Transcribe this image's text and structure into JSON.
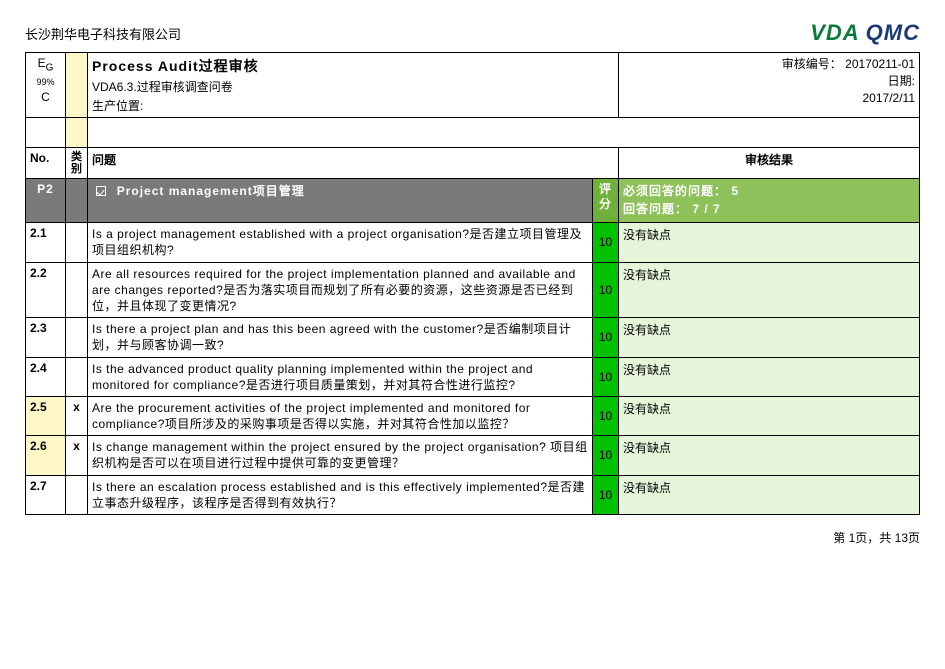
{
  "company": "长沙荆华电子科技有限公司",
  "logos": {
    "vda": "VDA",
    "qmc": "QMC"
  },
  "eg": {
    "label": "E",
    "sub": "G",
    "pct": "99%",
    "grade": "C"
  },
  "title": {
    "main": "Process Audit过程审核",
    "sub1": "VDA6.3.过程审核调查问卷",
    "sub2": "生产位置:"
  },
  "meta": {
    "audit_no_label": "审核编号：",
    "audit_no": "20170211-01",
    "date_label": "日期:",
    "date": "2017/2/11"
  },
  "headers": {
    "no": "No.",
    "cat": "类别",
    "question": "问题",
    "score": "评分",
    "result": "审核结果"
  },
  "section": {
    "code": "P2",
    "title": "Project management项目管理",
    "summary_line1_label": "必须回答的问题：",
    "summary_line1_val": "5",
    "summary_line2_label": "回答问题：",
    "summary_line2_val": "7 / 7"
  },
  "rows": [
    {
      "no": "2.1",
      "cat": "",
      "highlight": false,
      "q": "Is a project management established with a project organisation?是否建立项目管理及项目组织机构?",
      "score": "10",
      "res": "没有缺点"
    },
    {
      "no": "2.2",
      "cat": "",
      "highlight": false,
      "q": "Are all resources required for the project implementation planned and available and are changes reported?是否为落实项目而规划了所有必要的资源，这些资源是否已经到位，并且体现了变更情况?",
      "score": "10",
      "res": "没有缺点"
    },
    {
      "no": "2.3",
      "cat": "",
      "highlight": false,
      "q": "Is there a project plan and has this been agreed with the customer?是否编制项目计划，并与顾客协调一致?",
      "score": "10",
      "res": "没有缺点"
    },
    {
      "no": "2.4",
      "cat": "",
      "highlight": false,
      "q": "Is the advanced product quality planning implemented within the project and monitored for compliance?是否进行项目质量策划，并对其符合性进行监控?",
      "score": "10",
      "res": "没有缺点"
    },
    {
      "no": "2.5",
      "cat": "x",
      "highlight": true,
      "q": "Are the procurement activities of the project implemented and monitored for compliance?项目所涉及的采购事项是否得以实施，并对其符合性加以监控？",
      "score": "10",
      "res": "没有缺点"
    },
    {
      "no": "2.6",
      "cat": "x",
      "highlight": true,
      "q": "Is change management within the project ensured by the project organisation?  项目组织机构是否可以在项目进行过程中提供可靠的变更管理？",
      "score": "10",
      "res": "没有缺点"
    },
    {
      "no": "2.7",
      "cat": "",
      "highlight": false,
      "q": "Is there an escalation process established and is this effectively implemented?是否建立事态升级程序，该程序是否得到有效执行？",
      "score": "10",
      "res": "没有缺点"
    }
  ],
  "footer": "第 1页，共 13页",
  "colors": {
    "yellow": "#fff8c6",
    "section_gray": "#7a7a7a",
    "green_dark": "#6fb03a",
    "green_mid": "#8fc15a",
    "green_bright": "#00c000",
    "green_light": "#e6f4d9"
  }
}
